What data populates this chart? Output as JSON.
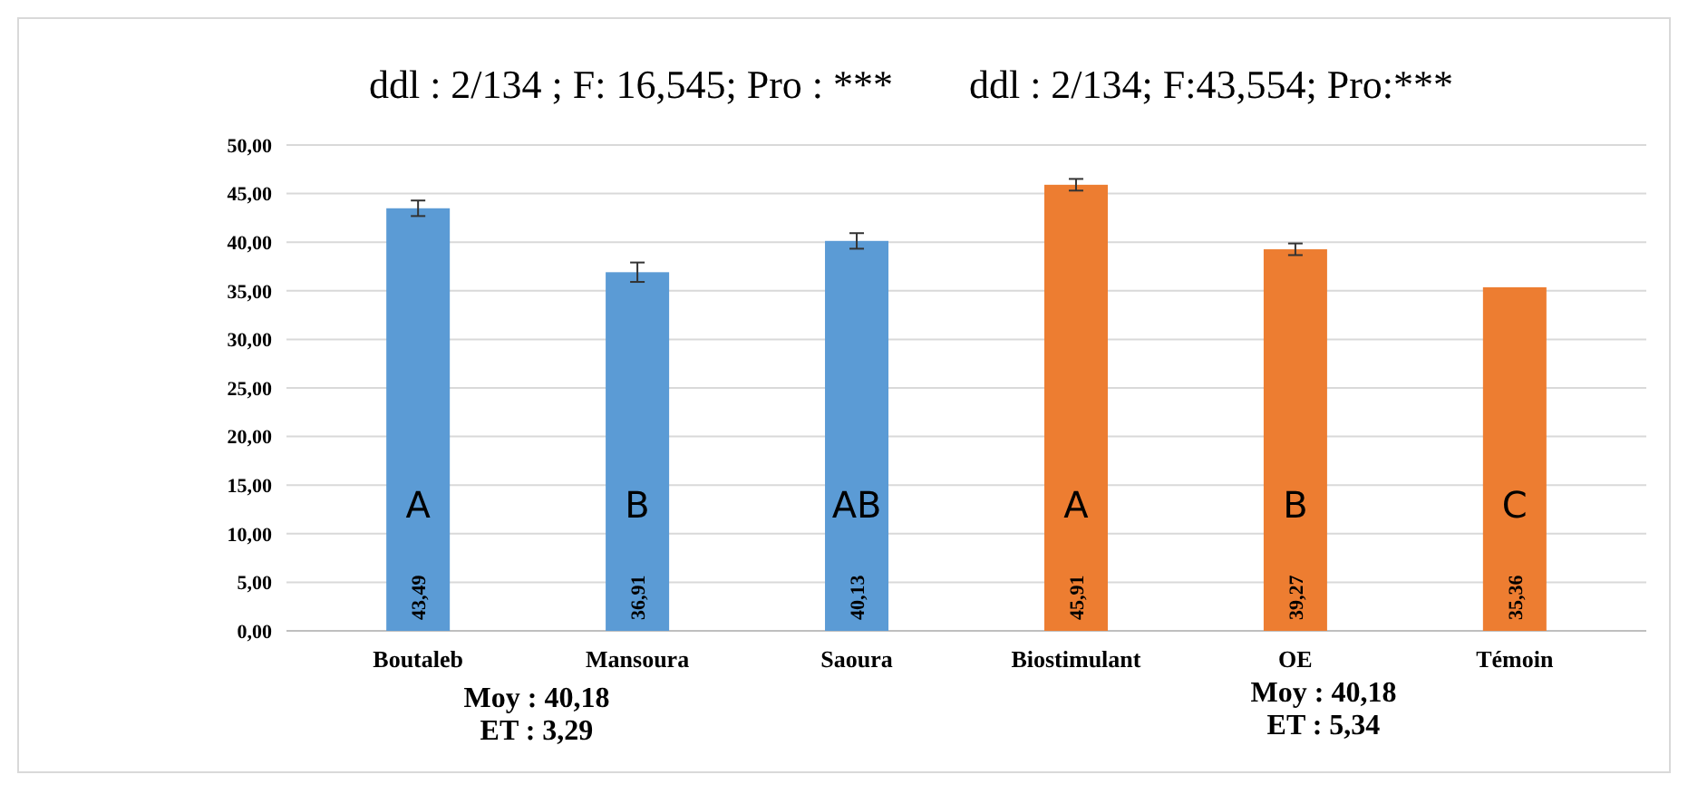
{
  "chart_data": {
    "type": "bar",
    "categories": [
      "Boutaleb",
      "Mansoura",
      "Saoura",
      "Biostimulant",
      "OE",
      "Témoin"
    ],
    "values": [
      43.49,
      36.91,
      40.13,
      45.91,
      39.27,
      35.36
    ],
    "colors": [
      "#5b9bd5",
      "#5b9bd5",
      "#5b9bd5",
      "#ed7d31",
      "#ed7d31",
      "#ed7d31"
    ],
    "errors": [
      0.8,
      1.0,
      0.8,
      0.6,
      0.6,
      null
    ],
    "value_labels": [
      "43,49",
      "36,91",
      "40,13",
      "45,91",
      "39,27",
      "35,36"
    ],
    "ylim": [
      0,
      50
    ],
    "yticks": [
      {
        "value": 0,
        "label": "0,00"
      },
      {
        "value": 5,
        "label": "5,00"
      },
      {
        "value": 10,
        "label": "10,00"
      },
      {
        "value": 15,
        "label": "15,00"
      },
      {
        "value": 20,
        "label": "20,00"
      },
      {
        "value": 25,
        "label": "25,00"
      },
      {
        "value": 30,
        "label": "30,00"
      },
      {
        "value": 35,
        "label": "35,00"
      },
      {
        "value": 40,
        "label": "40,00"
      },
      {
        "value": 45,
        "label": "45,00"
      },
      {
        "value": 50,
        "label": "50,00"
      }
    ],
    "grid": "y",
    "annotations": [
      "ddl : 2/134 ; F: 16,545; Pro : ***",
      "ddl : 2/134; F:43,554; Pro:***",
      "Moy : 40,18",
      "ET : 3,29",
      "Moy : 40,18",
      "ET : 5,34",
      "A",
      "B",
      "AB",
      "A",
      "B",
      "C"
    ]
  }
}
